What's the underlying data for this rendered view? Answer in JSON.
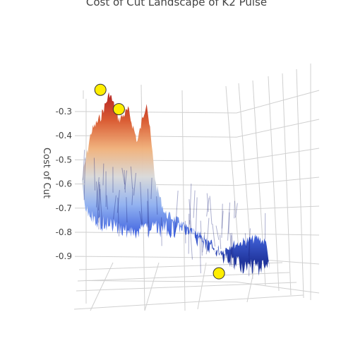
{
  "chart_data": {
    "type": "surface",
    "title": "Cost of Cut Landscape of K2 Pulse",
    "xlabel": "",
    "ylabel": "Cost of Cut",
    "zlabel": "",
    "zlim": [
      -0.97,
      -0.2
    ],
    "ztick_labels": [
      "-0.3",
      "-0.4",
      "-0.5",
      "-0.6",
      "-0.7",
      "-0.8",
      "-0.9"
    ],
    "ztick_values": [
      -0.3,
      -0.4,
      -0.5,
      -0.6,
      -0.7,
      -0.8,
      -0.9
    ],
    "colorscale": [
      "#1a2f9a",
      "#3f63e0",
      "#8fb0f0",
      "#d9d9d9",
      "#f0b07a",
      "#d9582e",
      "#b11a1a"
    ],
    "grid": true,
    "surface_profile": {
      "x": [
        0.0,
        0.05,
        0.1,
        0.15,
        0.2,
        0.25,
        0.3,
        0.35,
        0.4,
        0.45,
        0.5,
        0.55,
        0.6,
        0.65,
        0.7,
        0.75,
        0.8,
        0.85,
        0.9,
        0.95,
        1.0
      ],
      "z": [
        -0.58,
        -0.38,
        -0.32,
        -0.22,
        -0.33,
        -0.29,
        -0.42,
        -0.25,
        -0.6,
        -0.72,
        -0.74,
        -0.77,
        -0.8,
        -0.82,
        -0.86,
        -0.88,
        -0.85,
        -0.84,
        -0.83,
        -0.82,
        -0.84
      ]
    },
    "markers": [
      {
        "label": "local max",
        "x": 0.1,
        "z": -0.21,
        "color": "#ffee00"
      },
      {
        "label": "local max",
        "x": 0.2,
        "z": -0.29,
        "color": "#ffee00"
      },
      {
        "label": "min",
        "x": 0.55,
        "z": -0.97,
        "color": "#ffee00"
      }
    ]
  }
}
